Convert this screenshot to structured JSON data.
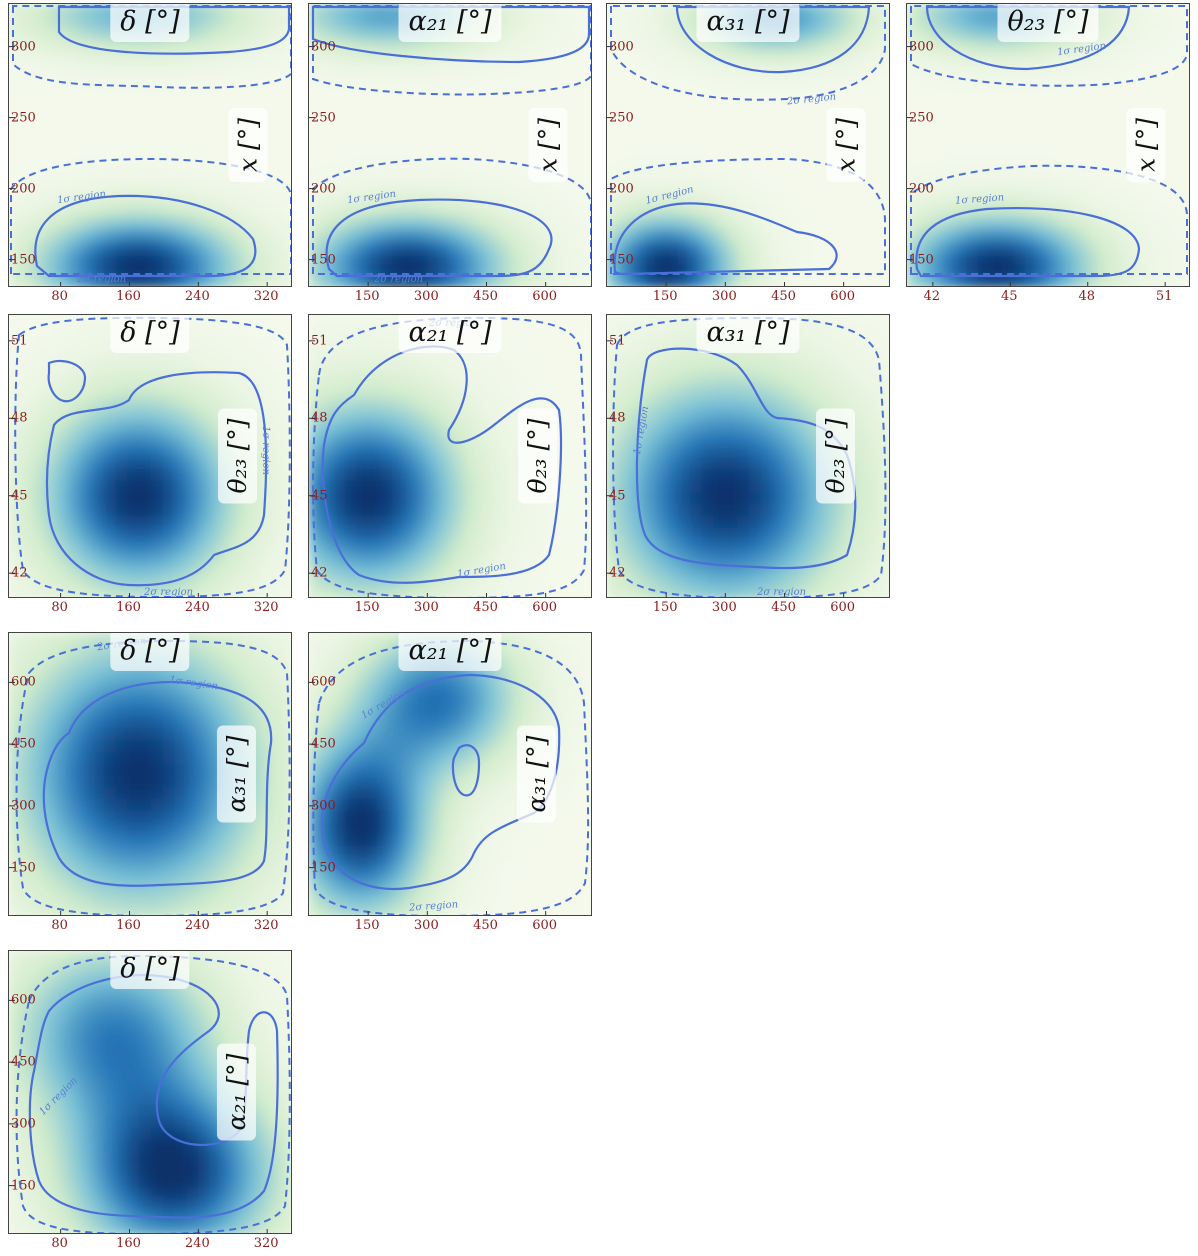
{
  "colors": {
    "one_sigma": "#4a6fd8",
    "two_sigma": "#4a6fd8",
    "density_low": "#f4f9ec",
    "density_high": "#08306b",
    "tick_label": "#8b1c1c"
  },
  "region_labels": {
    "one_sigma": "1σ region",
    "two_sigma": "2σ region"
  },
  "chart_data": [
    {
      "type": "heatmap",
      "id": "x-delta",
      "xlabel": "δ [°]",
      "ylabel": "x [°]",
      "xlim": [
        20,
        350
      ],
      "ylim": [
        130,
        330
      ],
      "xticks": [
        80,
        160,
        240,
        320
      ],
      "xtick_labels": [
        "80",
        "160",
        "240",
        "320"
      ],
      "yticks": [
        150,
        200,
        250,
        300
      ],
      "ytick_labels": [
        "150",
        "200",
        "250",
        "300"
      ],
      "peaks": [
        {
          "x": 170,
          "y": 145,
          "amp": 1.0,
          "sx": 80,
          "sy": 25
        },
        {
          "x": 170,
          "y": 322,
          "amp": 0.55,
          "sx": 90,
          "sy": 18
        }
      ]
    },
    {
      "type": "heatmap",
      "id": "x-alpha21",
      "xlabel": "α₂₁ [°]",
      "ylabel": "x [°]",
      "xlim": [
        0,
        720
      ],
      "ylim": [
        130,
        330
      ],
      "xticks": [
        150,
        300,
        450,
        600
      ],
      "xtick_labels": [
        "150",
        "300",
        "450",
        "600"
      ],
      "yticks": [
        150,
        200,
        250,
        300
      ],
      "ytick_labels": [
        "150",
        "200",
        "250",
        "300"
      ],
      "peaks": [
        {
          "x": 250,
          "y": 145,
          "amp": 1.0,
          "sx": 170,
          "sy": 25
        },
        {
          "x": 200,
          "y": 322,
          "amp": 0.6,
          "sx": 180,
          "sy": 18
        }
      ]
    },
    {
      "type": "heatmap",
      "id": "x-alpha31",
      "xlabel": "α₃₁ [°]",
      "ylabel": "x [°]",
      "xlim": [
        0,
        720
      ],
      "ylim": [
        130,
        330
      ],
      "xticks": [
        150,
        300,
        450,
        600
      ],
      "xtick_labels": [
        "150",
        "300",
        "450",
        "600"
      ],
      "yticks": [
        150,
        200,
        250,
        300
      ],
      "ytick_labels": [
        "150",
        "200",
        "250",
        "300"
      ],
      "peaks": [
        {
          "x": 150,
          "y": 145,
          "amp": 1.0,
          "sx": 120,
          "sy": 25
        },
        {
          "x": 430,
          "y": 320,
          "amp": 0.65,
          "sx": 150,
          "sy": 18
        }
      ]
    },
    {
      "type": "heatmap",
      "id": "x-theta23",
      "xlabel": "θ₂₃ [°]",
      "ylabel": "x [°]",
      "xlim": [
        41,
        52
      ],
      "ylim": [
        130,
        330
      ],
      "xticks": [
        42,
        45,
        48,
        51
      ],
      "xtick_labels": [
        "42",
        "45",
        "48",
        "51"
      ],
      "yticks": [
        150,
        200,
        250,
        300
      ],
      "ytick_labels": [
        "150",
        "200",
        "250",
        "300"
      ],
      "peaks": [
        {
          "x": 44.5,
          "y": 145,
          "amp": 1.0,
          "sx": 2.5,
          "sy": 25
        },
        {
          "x": 44.5,
          "y": 322,
          "amp": 0.6,
          "sx": 2.5,
          "sy": 18
        }
      ]
    },
    {
      "type": "heatmap",
      "id": "theta23-delta",
      "xlabel": "δ [°]",
      "ylabel": "θ₂₃ [°]",
      "xlim": [
        20,
        350
      ],
      "ylim": [
        41,
        52
      ],
      "xticks": [
        80,
        160,
        240,
        320
      ],
      "xtick_labels": [
        "80",
        "160",
        "240",
        "320"
      ],
      "yticks": [
        42,
        45,
        48,
        51
      ],
      "ytick_labels": [
        "42",
        "45",
        "48",
        "51"
      ],
      "peaks": [
        {
          "x": 170,
          "y": 45,
          "amp": 1.0,
          "sx": 75,
          "sy": 2.5
        }
      ]
    },
    {
      "type": "heatmap",
      "id": "theta23-alpha21",
      "xlabel": "α₂₁ [°]",
      "ylabel": "θ₂₃ [°]",
      "xlim": [
        0,
        720
      ],
      "ylim": [
        41,
        52
      ],
      "xticks": [
        150,
        300,
        450,
        600
      ],
      "xtick_labels": [
        "150",
        "300",
        "450",
        "600"
      ],
      "yticks": [
        42,
        45,
        48,
        51
      ],
      "ytick_labels": [
        "42",
        "45",
        "48",
        "51"
      ],
      "peaks": [
        {
          "x": 150,
          "y": 45,
          "amp": 1.0,
          "sx": 160,
          "sy": 2.5
        }
      ]
    },
    {
      "type": "heatmap",
      "id": "theta23-alpha31",
      "xlabel": "α₃₁ [°]",
      "ylabel": "θ₂₃ [°]",
      "xlim": [
        0,
        720
      ],
      "ylim": [
        41,
        52
      ],
      "xticks": [
        150,
        300,
        450,
        600
      ],
      "xtick_labels": [
        "150",
        "300",
        "450",
        "600"
      ],
      "yticks": [
        42,
        45,
        48,
        51
      ],
      "ytick_labels": [
        "42",
        "45",
        "48",
        "51"
      ],
      "peaks": [
        {
          "x": 300,
          "y": 45,
          "amp": 1.0,
          "sx": 200,
          "sy": 3.0
        }
      ]
    },
    {
      "type": "heatmap",
      "id": "alpha31-delta",
      "xlabel": "δ [°]",
      "ylabel": "α₃₁ [°]",
      "xlim": [
        20,
        350
      ],
      "ylim": [
        30,
        720
      ],
      "xticks": [
        80,
        160,
        240,
        320
      ],
      "xtick_labels": [
        "80",
        "160",
        "240",
        "320"
      ],
      "yticks": [
        150,
        300,
        450,
        600
      ],
      "ytick_labels": [
        "150",
        "300",
        "450",
        "600"
      ],
      "peaks": [
        {
          "x": 170,
          "y": 380,
          "amp": 1.0,
          "sx": 95,
          "sy": 220
        }
      ]
    },
    {
      "type": "heatmap",
      "id": "alpha31-alpha21",
      "xlabel": "α₂₁ [°]",
      "ylabel": "α₃₁ [°]",
      "xlim": [
        0,
        720
      ],
      "ylim": [
        30,
        720
      ],
      "xticks": [
        150,
        300,
        450,
        600
      ],
      "xtick_labels": [
        "150",
        "300",
        "450",
        "600"
      ],
      "yticks": [
        150,
        300,
        450,
        600
      ],
      "ytick_labels": [
        "150",
        "300",
        "450",
        "600"
      ],
      "peaks": [
        {
          "x": 130,
          "y": 250,
          "amp": 1.0,
          "sx": 120,
          "sy": 150
        },
        {
          "x": 330,
          "y": 560,
          "amp": 0.75,
          "sx": 140,
          "sy": 120
        }
      ]
    },
    {
      "type": "heatmap",
      "id": "alpha21-delta",
      "xlabel": "δ [°]",
      "ylabel": "α₂₁ [°]",
      "xlim": [
        20,
        350
      ],
      "ylim": [
        30,
        720
      ],
      "xticks": [
        80,
        160,
        240,
        320
      ],
      "xtick_labels": [
        "80",
        "160",
        "240",
        "320"
      ],
      "yticks": [
        150,
        300,
        450,
        600
      ],
      "ytick_labels": [
        "150",
        "300",
        "450",
        "600"
      ],
      "peaks": [
        {
          "x": 210,
          "y": 180,
          "amp": 1.0,
          "sx": 80,
          "sy": 150
        },
        {
          "x": 140,
          "y": 520,
          "amp": 0.7,
          "sx": 80,
          "sy": 150
        }
      ]
    }
  ]
}
